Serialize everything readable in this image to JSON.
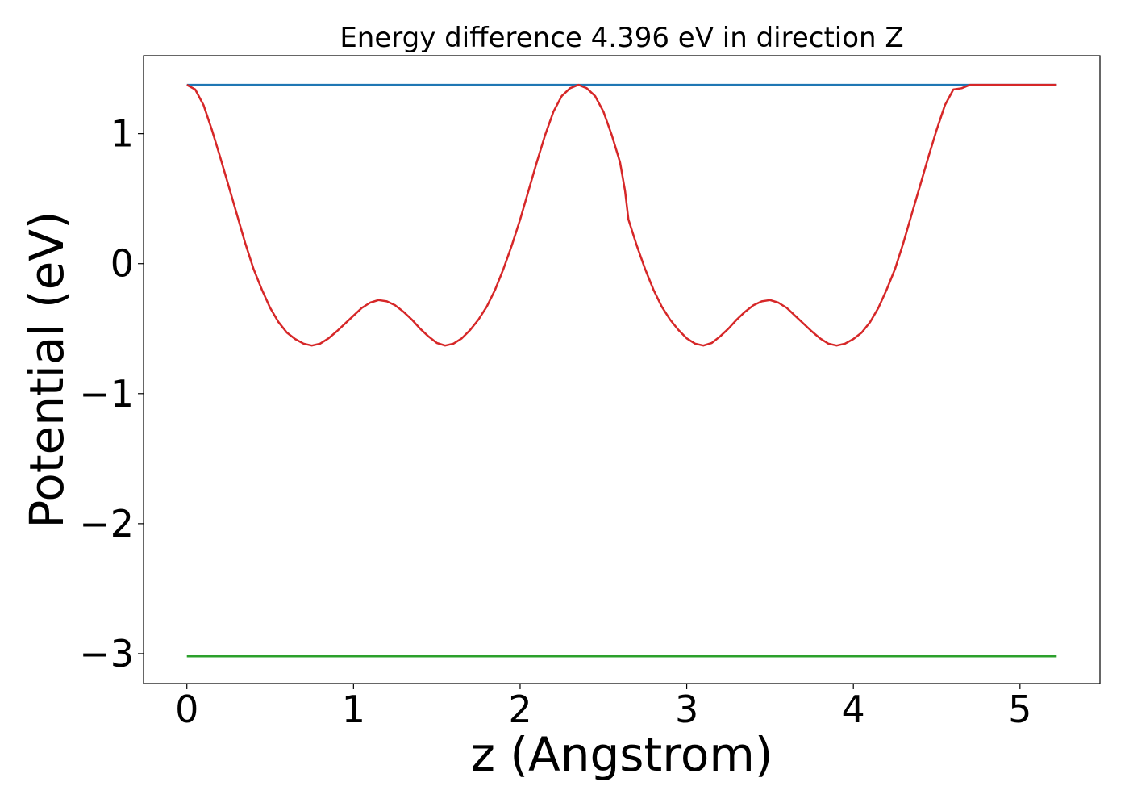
{
  "chart_data": {
    "type": "line",
    "title": "Energy difference 4.396 eV in direction Z",
    "xlabel": "z (Angstrom)",
    "ylabel": "Potential (eV)",
    "xlim": [
      -0.26,
      5.48
    ],
    "ylim": [
      -3.23,
      1.6
    ],
    "xticks": [
      0,
      1,
      2,
      3,
      4,
      5
    ],
    "yticks": [
      1,
      0,
      -1,
      -2,
      -3
    ],
    "xtick_labels": [
      "0",
      "1",
      "2",
      "3",
      "4",
      "5"
    ],
    "ytick_labels": [
      "1",
      "0",
      "−1",
      "−2",
      "−3"
    ],
    "grid": false,
    "series": [
      {
        "color": "#1f77b4",
        "x": [
          0,
          5.22
        ],
        "y": [
          1.376,
          1.376
        ]
      },
      {
        "color": "#2ca02c",
        "x": [
          0,
          5.22
        ],
        "y": [
          -3.02,
          -3.02
        ]
      },
      {
        "color": "#d62728",
        "x": [
          0,
          0.05,
          0.1,
          0.15,
          0.2,
          0.25,
          0.3,
          0.35,
          0.4,
          0.45,
          0.5,
          0.55,
          0.6,
          0.65,
          0.7,
          0.75,
          0.8,
          0.85,
          0.9,
          0.95,
          1.0,
          1.05,
          1.1,
          1.15,
          1.2,
          1.25,
          1.3,
          1.35,
          1.4,
          1.45,
          1.5,
          1.55,
          1.6,
          1.65,
          1.7,
          1.75,
          1.8,
          1.85,
          1.9,
          1.95,
          2.0,
          2.05,
          2.1,
          2.15,
          2.2,
          2.25,
          2.3,
          2.35,
          2.4,
          2.45,
          2.5,
          2.55,
          2.6,
          2.63,
          2.65,
          2.7,
          2.75,
          2.8,
          2.85,
          2.9,
          2.95,
          3.0,
          3.05,
          3.1,
          3.15,
          3.2,
          3.25,
          3.3,
          3.35,
          3.4,
          3.45,
          3.5,
          3.55,
          3.6,
          3.65,
          3.7,
          3.75,
          3.8,
          3.85,
          3.9,
          3.95,
          4.0,
          4.05,
          4.1,
          4.15,
          4.2,
          4.25,
          4.3,
          4.35,
          4.4,
          4.45,
          4.5,
          4.55,
          4.6,
          4.65,
          4.7,
          4.75,
          4.8,
          4.85,
          4.9,
          4.95,
          5.0,
          5.05,
          5.1,
          5.15,
          5.2,
          5.22
        ],
        "y": [
          1.376,
          1.34,
          1.22,
          1.03,
          0.82,
          0.6,
          0.38,
          0.16,
          -0.04,
          -0.2,
          -0.34,
          -0.45,
          -0.53,
          -0.58,
          -0.615,
          -0.63,
          -0.615,
          -0.575,
          -0.52,
          -0.46,
          -0.4,
          -0.34,
          -0.3,
          -0.28,
          -0.29,
          -0.32,
          -0.37,
          -0.43,
          -0.5,
          -0.56,
          -0.61,
          -0.63,
          -0.615,
          -0.575,
          -0.51,
          -0.43,
          -0.33,
          -0.2,
          -0.04,
          0.14,
          0.34,
          0.56,
          0.78,
          0.99,
          1.17,
          1.29,
          1.35,
          1.376,
          1.35,
          1.29,
          1.17,
          0.99,
          0.78,
          0.56,
          0.34,
          0.14,
          -0.04,
          -0.2,
          -0.33,
          -0.43,
          -0.51,
          -0.575,
          -0.615,
          -0.63,
          -0.61,
          -0.56,
          -0.5,
          -0.43,
          -0.37,
          -0.32,
          -0.29,
          -0.28,
          -0.3,
          -0.34,
          -0.4,
          -0.46,
          -0.52,
          -0.575,
          -0.615,
          -0.63,
          -0.615,
          -0.58,
          -0.53,
          -0.45,
          -0.34,
          -0.2,
          -0.04,
          0.16,
          0.38,
          0.6,
          0.82,
          1.03,
          1.22,
          1.34,
          1.35,
          1.376,
          1.376,
          1.376,
          1.376,
          1.376,
          1.376,
          1.376,
          1.376,
          1.376,
          1.376,
          1.376,
          1.376
        ]
      }
    ]
  }
}
